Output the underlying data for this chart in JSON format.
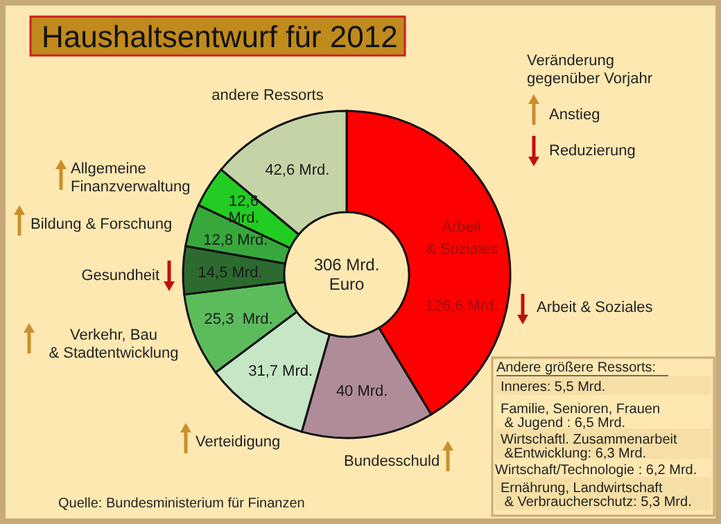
{
  "chart_data": {
    "type": "donut",
    "title": "Haushaltsentwurf für 2012",
    "categories": [
      "Arbeit & Soziales",
      "Bundesschuld",
      "Verteidigung",
      "Verkehr, Bau\n& Stadtentwicklung",
      "Gesundheit",
      "Bildung & Forschung",
      "Allgemeine\nFinanzverwaltung",
      "andere Ressorts"
    ],
    "values": [
      126.6,
      40,
      31.7,
      25.3,
      14.5,
      12.8,
      12.6,
      42.6
    ],
    "value_labels": [
      "126,6 Mrd.",
      "40 Mrd.",
      "31,7 Mrd.",
      "25,3  Mrd.",
      "14,5 Mrd.",
      "12,8 Mrd.",
      "12,6\nMrd.",
      "42,6 Mrd."
    ],
    "colors": [
      "#ff0000",
      "#b08c98",
      "#c6e6c6",
      "#5cbc5c",
      "#2c6a30",
      "#38a83c",
      "#22cc22",
      "#c4d4a6"
    ],
    "annotations": [
      "306 Mrd.\nEuro",
      "Arbeit\n& Soziales",
      "Veränderung\ngegenüber Vorjahr",
      "Anstieg",
      "Reduzierung",
      "Andere größere Ressorts:",
      "Inneres: 5,5 Mrd.",
      "Familie, Senioren, Frauen\n & Jugend : 6,5 Mrd.",
      "Wirtschaftl. Zusammenarbeit\n &Entwicklung: 6,3 Mrd.",
      "Wirtschaft/Technologie : 6,2 Mrd.",
      "Ernährung, Landwirtschaft\n & Verbraucherschutz: 5,3 Mrd.",
      "Quelle: Bundesministerium für Finanzen"
    ],
    "legend": null
  }
}
